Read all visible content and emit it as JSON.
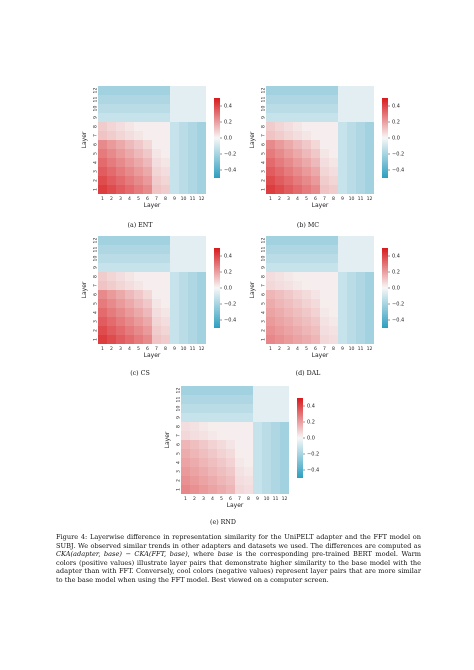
{
  "figure": {
    "panels": [
      {
        "id": "a",
        "caption": "(a) ENT",
        "label_tag": "ENT",
        "big_corner": true
      },
      {
        "id": "b",
        "caption": "(b) MC",
        "label_tag": "MC",
        "big_corner": true
      },
      {
        "id": "c",
        "caption": "(c) CS",
        "label_tag": "CS",
        "big_corner": true
      },
      {
        "id": "d",
        "caption": "(d) DAL",
        "label_tag": "DAL",
        "big_corner": false
      },
      {
        "id": "e",
        "caption": "(e) RND",
        "label_tag": "RND",
        "big_corner": false
      }
    ],
    "axis": {
      "xlabel": "Layer",
      "ylabel": "Layer",
      "ticks": [
        "1",
        "2",
        "3",
        "4",
        "5",
        "6",
        "7",
        "8",
        "9",
        "10",
        "11",
        "12"
      ]
    },
    "colorbar": {
      "ticks": [
        "0.4",
        "0.2",
        "0.0",
        "−0.2",
        "−0.4"
      ],
      "values": [
        0.4,
        0.2,
        0.0,
        -0.2,
        -0.4
      ],
      "range": [
        -0.5,
        0.5
      ],
      "colors": {
        "high": "#d7191c",
        "mid": "#f7f7f7",
        "low": "#2c9ec0"
      }
    }
  },
  "caption": {
    "label": "Figure 4:",
    "line1": "Layerwise difference in representation similarity for the UniPELT adapter and the FFT model on",
    "dataset": "SUBJ",
    "line2": ". We observed similar trends in other adapters and datasets we used. The differences are computed as",
    "formula": "CKA(adapter, base) − CKA(FFT, base)",
    "line3": ", where",
    "base_word": "base",
    "line4": "is the corresponding pre-trained",
    "bert": "BERT",
    "line5": "model. Warm colors (positive values) illustrate layer pairs that demonstrate higher similarity to the base model with the adapter than with FFT. Conversely, cool colors (negative values) represent layer pairs that are more similar to the base model when using the FFT model. Best viewed on a computer screen."
  }
}
